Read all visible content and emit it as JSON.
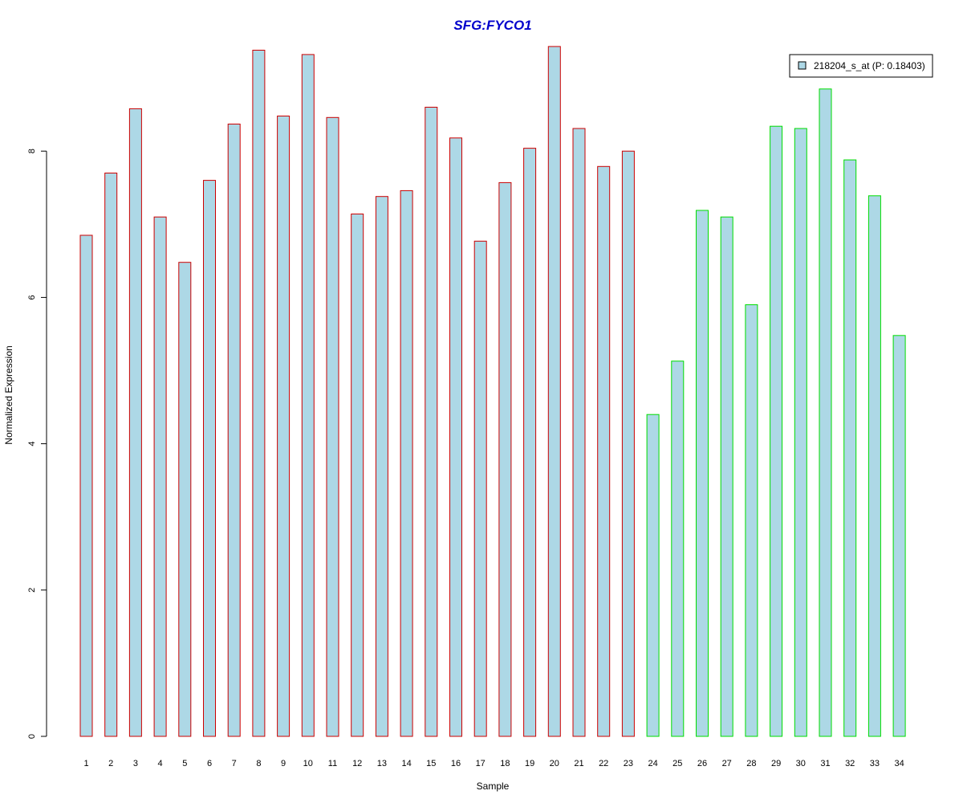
{
  "chart_data": {
    "type": "bar",
    "title": "SFG:FYCO1",
    "xlabel": "Sample",
    "ylabel": "Normalized Expression",
    "categories": [
      "1",
      "2",
      "3",
      "4",
      "5",
      "6",
      "7",
      "8",
      "9",
      "10",
      "11",
      "12",
      "13",
      "14",
      "15",
      "16",
      "17",
      "18",
      "19",
      "20",
      "21",
      "22",
      "23",
      "24",
      "25",
      "26",
      "27",
      "28",
      "29",
      "30",
      "31",
      "32",
      "33",
      "34"
    ],
    "series": [
      {
        "name": "218204_s_at (P: 0.18403)",
        "values": [
          6.85,
          7.7,
          8.58,
          7.1,
          6.48,
          7.6,
          8.37,
          9.38,
          8.48,
          9.32,
          8.46,
          7.14,
          7.38,
          7.46,
          8.6,
          8.18,
          6.77,
          7.57,
          8.04,
          9.43,
          8.31,
          7.79,
          8.0,
          4.4,
          5.13,
          7.19,
          7.1,
          5.9,
          8.34,
          8.31,
          8.85,
          7.88,
          7.39,
          5.48
        ]
      }
    ],
    "group_border_colors": [
      "#cc0000",
      "#cc0000",
      "#cc0000",
      "#cc0000",
      "#cc0000",
      "#cc0000",
      "#cc0000",
      "#cc0000",
      "#cc0000",
      "#cc0000",
      "#cc0000",
      "#cc0000",
      "#cc0000",
      "#cc0000",
      "#cc0000",
      "#cc0000",
      "#cc0000",
      "#cc0000",
      "#cc0000",
      "#cc0000",
      "#cc0000",
      "#cc0000",
      "#cc0000",
      "#00dd00",
      "#00dd00",
      "#00dd00",
      "#00dd00",
      "#00dd00",
      "#00dd00",
      "#00dd00",
      "#00dd00",
      "#00dd00",
      "#00dd00",
      "#00dd00"
    ],
    "yticks": [
      0,
      2,
      4,
      6,
      8
    ],
    "ylim": [
      0,
      9.6
    ],
    "grid": false,
    "legend_position": "top-right",
    "colors": {
      "bar_fill": "#add8e6",
      "title": "#0000cc",
      "axis": "#000000"
    }
  }
}
